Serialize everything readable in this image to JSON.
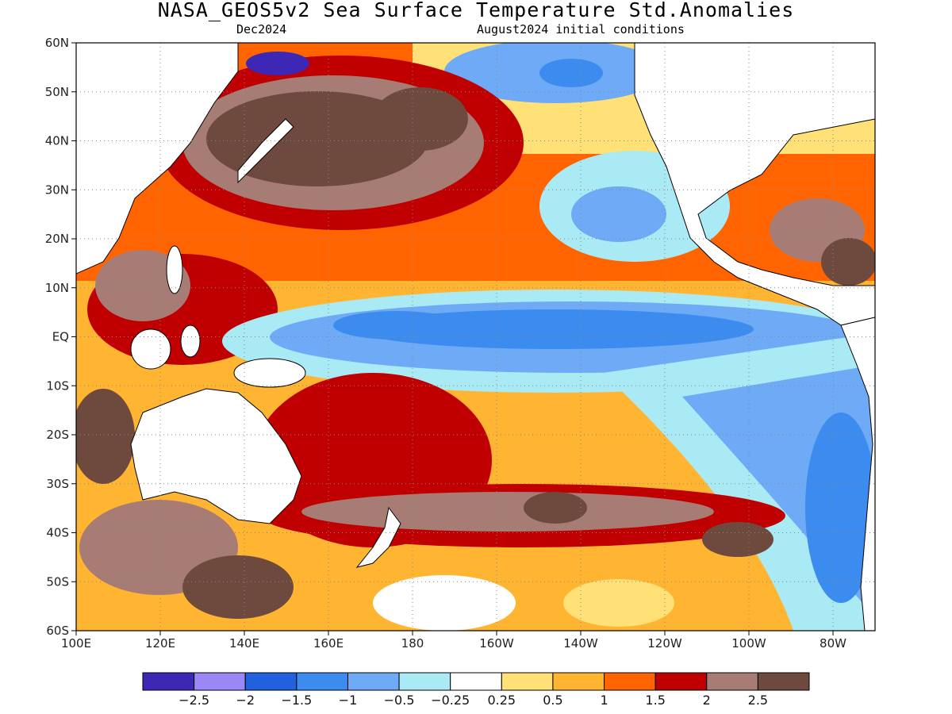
{
  "title": "NASA_GEOS5v2 Sea Surface Temperature Std.Anomalies",
  "subtitle_left": "Dec2024",
  "subtitle_right": "August2024 initial conditions",
  "lat_labels": [
    "60N",
    "50N",
    "40N",
    "30N",
    "20N",
    "10N",
    "EQ",
    "10S",
    "20S",
    "30S",
    "40S",
    "50S",
    "60S"
  ],
  "lon_labels": [
    "100E",
    "120E",
    "140E",
    "160E",
    "180",
    "160W",
    "140W",
    "120W",
    "100W",
    "80W"
  ],
  "colorbar": {
    "colors": [
      "#3c28b4",
      "#9b87f5",
      "#2061e0",
      "#3c8cf0",
      "#6eaaf5",
      "#aaeaf5",
      "#ffffff",
      "#ffe178",
      "#ffb432",
      "#ff6400",
      "#c00000",
      "#a67c74",
      "#6e4a3e"
    ],
    "labels": [
      "−2.5",
      "−2",
      "−1.5",
      "−1",
      "−0.5",
      "−0.25",
      "0.25",
      "0.5",
      "1",
      "1.5",
      "2",
      "2.5"
    ]
  }
}
